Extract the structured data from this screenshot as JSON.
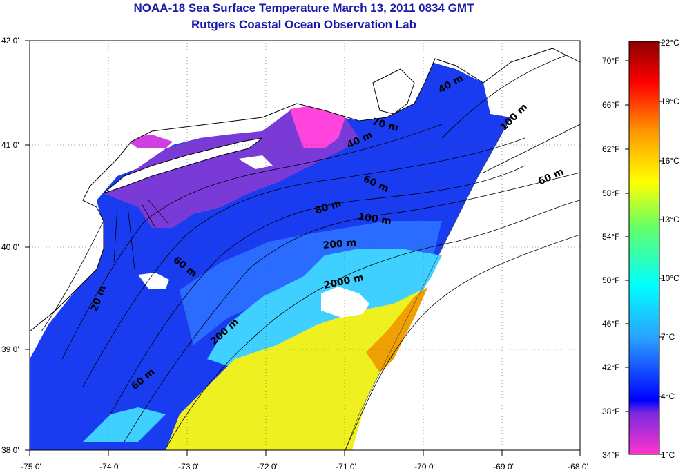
{
  "title": {
    "line1": "NOAA-18 Sea Surface Temperature March 13, 2011 0834 GMT",
    "line2": "Rutgers Coastal Ocean Observation Lab"
  },
  "axes": {
    "lat_labels": [
      "42 0'",
      "41 0'",
      "40 0'",
      "39 0'",
      "38 0'"
    ],
    "lon_labels": [
      "-75 0'",
      "-74 0'",
      "-73 0'",
      "-72 0'",
      "-71 0'",
      "-70 0'",
      "-69 0'",
      "-68 0'"
    ]
  },
  "colorbar": {
    "fahrenheit": [
      "70°F",
      "66°F",
      "62°F",
      "58°F",
      "54°F",
      "50°F",
      "46°F",
      "42°F",
      "38°F",
      "34°F"
    ],
    "celsius": [
      "22°C",
      "19°C",
      "16°C",
      "13°C",
      "10°C",
      "7°C",
      "4°C",
      "1°C"
    ],
    "colors": [
      "#ff33cc",
      "#7a2ae0",
      "#0000ff",
      "#2aa0ff",
      "#00ffff",
      "#66ff66",
      "#ffff00",
      "#ff9900",
      "#ff0000",
      "#8b0000"
    ]
  },
  "contours": {
    "labels": [
      "40 m",
      "70 m",
      "40 m",
      "100 m",
      "60 m",
      "60 m",
      "80 m",
      "100 m",
      "200 m",
      "60 m",
      "20 m",
      "2000 m",
      "200 m",
      "60 m"
    ]
  },
  "map_colors": {
    "land": "#ffffff",
    "cold_pink": "#ff44dd",
    "cold_purple": "#8a35e0",
    "shelf_blue": "#1a3cf0",
    "mid_blue": "#2a6cff",
    "slope_cyan": "#40d8ff",
    "warm_yellow": "#f0f020",
    "warm_orange": "#f0a000"
  }
}
